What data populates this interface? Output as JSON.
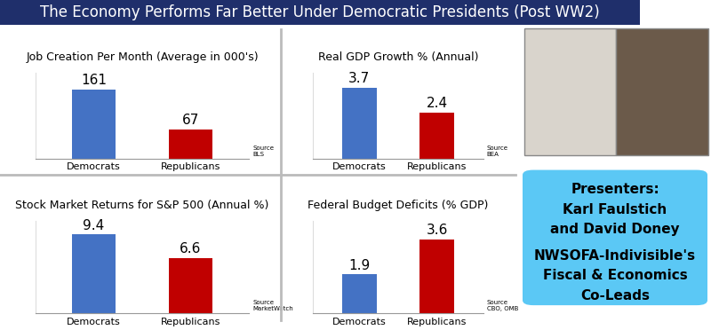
{
  "header": "The Economy Performs Far Better Under Democratic Presidents (Post WW2)",
  "chart_data": [
    {
      "type": "bar",
      "title": "Job Creation Per Month (Average in 000's)",
      "categories": [
        "Democrats",
        "Republicans"
      ],
      "values": [
        161,
        67
      ],
      "colors": [
        "#4472c4",
        "#c00000"
      ],
      "ylim": [
        0,
        200
      ],
      "yticks": [],
      "tick_labels": "x",
      "data_labels": true,
      "annotations": [
        "Source",
        "BLS"
      ]
    },
    {
      "type": "bar",
      "title": "Real GDP Growth % (Annual)",
      "categories": [
        "Democrats",
        "Republicans"
      ],
      "values": [
        3.7,
        2.4
      ],
      "colors": [
        "#4472c4",
        "#c00000"
      ],
      "ylim": [
        0,
        4.5
      ],
      "yticks": [],
      "tick_labels": "x",
      "data_labels": true,
      "annotations": [
        "Source",
        "BEA"
      ]
    },
    {
      "type": "bar",
      "title": "Stock Market Returns for S&P 500 (Annual %)",
      "categories": [
        "Democrats",
        "Republicans"
      ],
      "values": [
        9.4,
        6.6
      ],
      "colors": [
        "#4472c4",
        "#c00000"
      ],
      "ylim": [
        0,
        11
      ],
      "yticks": [],
      "tick_labels": "x",
      "data_labels": true,
      "annotations": [
        "Source",
        "MarketWatch"
      ]
    },
    {
      "type": "bar",
      "title": "Federal Budget Deficits (% GDP)",
      "categories": [
        "Democrats",
        "Republicans"
      ],
      "values": [
        1.9,
        3.6
      ],
      "colors": [
        "#4472c4",
        "#c00000"
      ],
      "ylim": [
        0,
        4.5
      ],
      "yticks": [],
      "tick_labels": "x",
      "data_labels": true,
      "annotations": [
        "Source",
        "CBO, OMB"
      ]
    }
  ],
  "presenters": [
    "Presenters:",
    "Karl Faulstich",
    "and David Doney",
    "NWSOFA-Indivisible's",
    "Fiscal & Economics",
    "Co-Leads"
  ]
}
